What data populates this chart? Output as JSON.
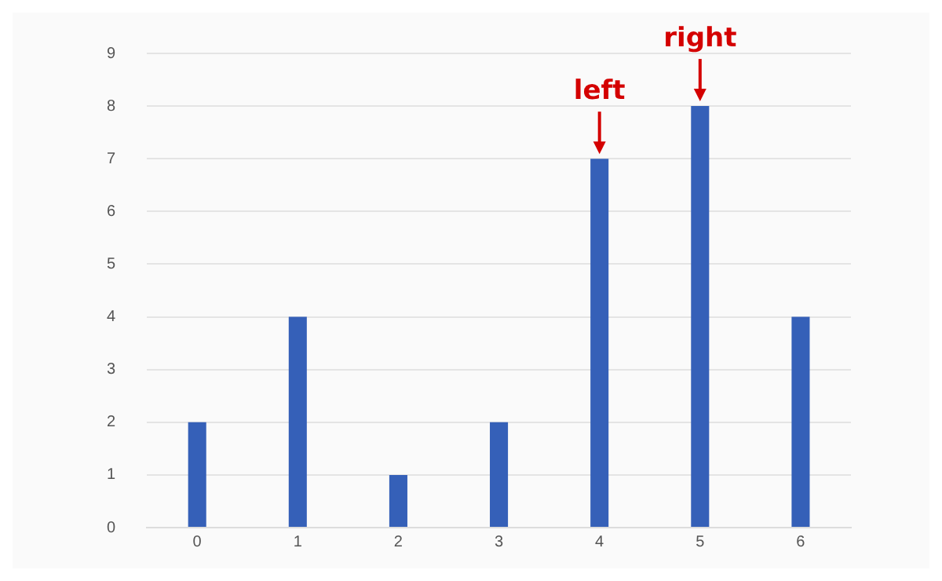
{
  "chart_data": {
    "type": "bar",
    "categories": [
      "0",
      "1",
      "2",
      "3",
      "4",
      "5",
      "6"
    ],
    "values": [
      2,
      4,
      1,
      2,
      7,
      8,
      4
    ],
    "color": "#3560b8",
    "ylim": [
      0,
      9
    ],
    "yticks": [
      0,
      1,
      2,
      3,
      4,
      5,
      6,
      7,
      8,
      9
    ],
    "grid": "y",
    "annotations": [
      {
        "text": "left",
        "x": "4",
        "y": 7
      },
      {
        "text": "right",
        "x": "5",
        "y": 8
      }
    ]
  }
}
